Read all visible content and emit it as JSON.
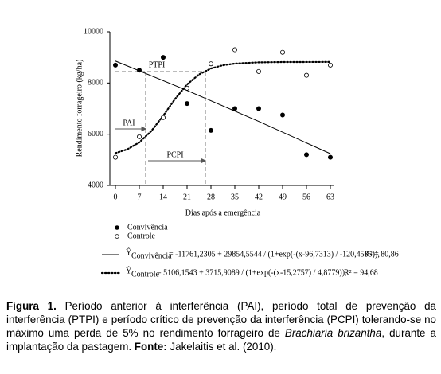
{
  "chart_data": {
    "type": "scatter",
    "ylabel": "Rendimento forrageiro (kg/ha)",
    "xlabel": "Dias após a emergência",
    "xlim": [
      0,
      63
    ],
    "xticks": [
      0,
      7,
      14,
      21,
      28,
      35,
      42,
      49,
      56,
      63
    ],
    "ylim": [
      4000,
      10000
    ],
    "yticks": [
      4000,
      6000,
      8000,
      10000
    ],
    "series": [
      {
        "name": "Convivência",
        "color": "#000000",
        "marker": "filled",
        "x": [
          0,
          7,
          14,
          21,
          28,
          35,
          42,
          49,
          56,
          63
        ],
        "values": [
          8700,
          8500,
          9000,
          7200,
          6150,
          7000,
          7000,
          6750,
          5200,
          5100
        ]
      },
      {
        "name": "Controle",
        "color": "#000000",
        "marker": "open",
        "x": [
          0,
          7,
          14,
          21,
          28,
          35,
          42,
          49,
          56,
          63
        ],
        "values": [
          5100,
          5900,
          6650,
          7800,
          8750,
          9300,
          8450,
          9200,
          8300,
          8700
        ]
      }
    ],
    "fits": [
      {
        "style": "solid",
        "x": [
          0,
          21,
          42,
          63
        ],
        "values": [
          8857,
          7710,
          6500,
          5240
        ],
        "eq_symbol": "Ŷ",
        "eq_subscript": "Convivência",
        "eq_body": "= -11761,2305 + 29854,5544 / (1+exp(-(x-96,7313) / -120,4535)),",
        "r2": "R² = 80,86"
      },
      {
        "style": "dotted",
        "x": [
          0,
          3.5,
          7,
          10.5,
          14,
          17.5,
          21,
          24.5,
          28,
          31.5,
          35,
          42,
          49,
          63
        ],
        "values": [
          5262,
          5411,
          5681,
          6121,
          6722,
          7380,
          7944,
          8335,
          8567,
          8693,
          8758,
          8806,
          8818,
          8822
        ],
        "eq_symbol": "Ŷ",
        "eq_subscript": "Controle",
        "eq_body": "= 5106,1543 + 3715,9089 / (1+exp(-(x-15,2757) / 4,8779)),",
        "r2": "R² = 94,68"
      }
    ],
    "annotations": [
      "PTPI",
      "PAI",
      "PCPI"
    ]
  },
  "caption": {
    "label": "Figura 1.",
    "text1": " Período anterior à interferência (PAI), período total de prevenção da interferência (PTPI) e período crítico de prevenção da interferência (PCPI) tolerando-se no máximo uma perda de 5% no rendimento forrageiro de ",
    "species": "Brachiaria brizantha",
    "text2": ", durante a implantação da pastagem. ",
    "source_label": "Fonte:",
    "source": " Jakelaitis et al. (2010)."
  }
}
